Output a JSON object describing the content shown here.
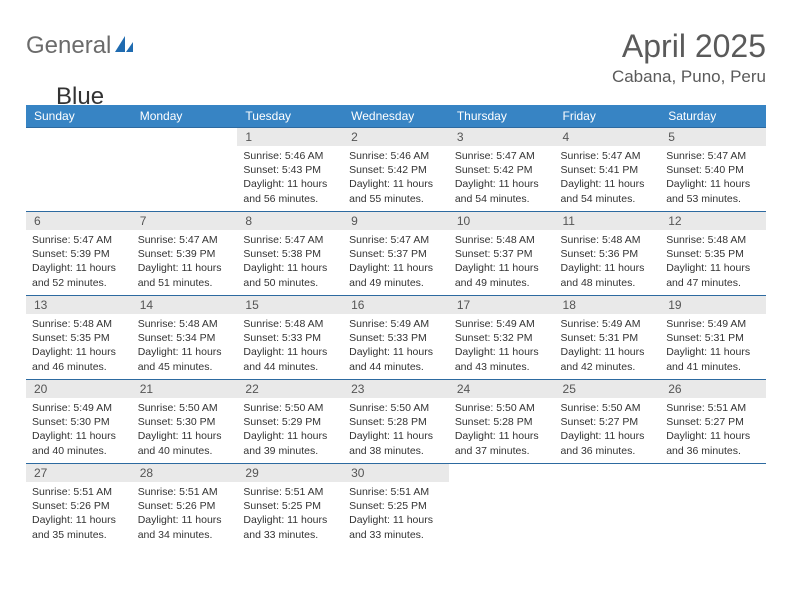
{
  "brand": {
    "word1": "General",
    "word2": "Blue"
  },
  "colors": {
    "brand_gray": "#6b6b6b",
    "brand_blue": "#3bb0e2",
    "header_bg": "#3784c4",
    "header_text": "#ffffff",
    "daynum_bg": "#e9e9e9",
    "rule": "#2d6aa0",
    "body_text": "#333333",
    "title_text": "#5a5a5a",
    "page_bg": "#ffffff"
  },
  "typography": {
    "title_fontsize": 32,
    "location_fontsize": 17,
    "dow_fontsize": 12,
    "daynum_fontsize": 12,
    "cell_fontsize": 10.5
  },
  "title": "April 2025",
  "location": "Cabana, Puno, Peru",
  "days_of_week": [
    "Sunday",
    "Monday",
    "Tuesday",
    "Wednesday",
    "Thursday",
    "Friday",
    "Saturday"
  ],
  "weeks": [
    [
      null,
      null,
      {
        "n": "1",
        "sr": "Sunrise: 5:46 AM",
        "ss": "Sunset: 5:43 PM",
        "dl1": "Daylight: 11 hours",
        "dl2": "and 56 minutes."
      },
      {
        "n": "2",
        "sr": "Sunrise: 5:46 AM",
        "ss": "Sunset: 5:42 PM",
        "dl1": "Daylight: 11 hours",
        "dl2": "and 55 minutes."
      },
      {
        "n": "3",
        "sr": "Sunrise: 5:47 AM",
        "ss": "Sunset: 5:42 PM",
        "dl1": "Daylight: 11 hours",
        "dl2": "and 54 minutes."
      },
      {
        "n": "4",
        "sr": "Sunrise: 5:47 AM",
        "ss": "Sunset: 5:41 PM",
        "dl1": "Daylight: 11 hours",
        "dl2": "and 54 minutes."
      },
      {
        "n": "5",
        "sr": "Sunrise: 5:47 AM",
        "ss": "Sunset: 5:40 PM",
        "dl1": "Daylight: 11 hours",
        "dl2": "and 53 minutes."
      }
    ],
    [
      {
        "n": "6",
        "sr": "Sunrise: 5:47 AM",
        "ss": "Sunset: 5:39 PM",
        "dl1": "Daylight: 11 hours",
        "dl2": "and 52 minutes."
      },
      {
        "n": "7",
        "sr": "Sunrise: 5:47 AM",
        "ss": "Sunset: 5:39 PM",
        "dl1": "Daylight: 11 hours",
        "dl2": "and 51 minutes."
      },
      {
        "n": "8",
        "sr": "Sunrise: 5:47 AM",
        "ss": "Sunset: 5:38 PM",
        "dl1": "Daylight: 11 hours",
        "dl2": "and 50 minutes."
      },
      {
        "n": "9",
        "sr": "Sunrise: 5:47 AM",
        "ss": "Sunset: 5:37 PM",
        "dl1": "Daylight: 11 hours",
        "dl2": "and 49 minutes."
      },
      {
        "n": "10",
        "sr": "Sunrise: 5:48 AM",
        "ss": "Sunset: 5:37 PM",
        "dl1": "Daylight: 11 hours",
        "dl2": "and 49 minutes."
      },
      {
        "n": "11",
        "sr": "Sunrise: 5:48 AM",
        "ss": "Sunset: 5:36 PM",
        "dl1": "Daylight: 11 hours",
        "dl2": "and 48 minutes."
      },
      {
        "n": "12",
        "sr": "Sunrise: 5:48 AM",
        "ss": "Sunset: 5:35 PM",
        "dl1": "Daylight: 11 hours",
        "dl2": "and 47 minutes."
      }
    ],
    [
      {
        "n": "13",
        "sr": "Sunrise: 5:48 AM",
        "ss": "Sunset: 5:35 PM",
        "dl1": "Daylight: 11 hours",
        "dl2": "and 46 minutes."
      },
      {
        "n": "14",
        "sr": "Sunrise: 5:48 AM",
        "ss": "Sunset: 5:34 PM",
        "dl1": "Daylight: 11 hours",
        "dl2": "and 45 minutes."
      },
      {
        "n": "15",
        "sr": "Sunrise: 5:48 AM",
        "ss": "Sunset: 5:33 PM",
        "dl1": "Daylight: 11 hours",
        "dl2": "and 44 minutes."
      },
      {
        "n": "16",
        "sr": "Sunrise: 5:49 AM",
        "ss": "Sunset: 5:33 PM",
        "dl1": "Daylight: 11 hours",
        "dl2": "and 44 minutes."
      },
      {
        "n": "17",
        "sr": "Sunrise: 5:49 AM",
        "ss": "Sunset: 5:32 PM",
        "dl1": "Daylight: 11 hours",
        "dl2": "and 43 minutes."
      },
      {
        "n": "18",
        "sr": "Sunrise: 5:49 AM",
        "ss": "Sunset: 5:31 PM",
        "dl1": "Daylight: 11 hours",
        "dl2": "and 42 minutes."
      },
      {
        "n": "19",
        "sr": "Sunrise: 5:49 AM",
        "ss": "Sunset: 5:31 PM",
        "dl1": "Daylight: 11 hours",
        "dl2": "and 41 minutes."
      }
    ],
    [
      {
        "n": "20",
        "sr": "Sunrise: 5:49 AM",
        "ss": "Sunset: 5:30 PM",
        "dl1": "Daylight: 11 hours",
        "dl2": "and 40 minutes."
      },
      {
        "n": "21",
        "sr": "Sunrise: 5:50 AM",
        "ss": "Sunset: 5:30 PM",
        "dl1": "Daylight: 11 hours",
        "dl2": "and 40 minutes."
      },
      {
        "n": "22",
        "sr": "Sunrise: 5:50 AM",
        "ss": "Sunset: 5:29 PM",
        "dl1": "Daylight: 11 hours",
        "dl2": "and 39 minutes."
      },
      {
        "n": "23",
        "sr": "Sunrise: 5:50 AM",
        "ss": "Sunset: 5:28 PM",
        "dl1": "Daylight: 11 hours",
        "dl2": "and 38 minutes."
      },
      {
        "n": "24",
        "sr": "Sunrise: 5:50 AM",
        "ss": "Sunset: 5:28 PM",
        "dl1": "Daylight: 11 hours",
        "dl2": "and 37 minutes."
      },
      {
        "n": "25",
        "sr": "Sunrise: 5:50 AM",
        "ss": "Sunset: 5:27 PM",
        "dl1": "Daylight: 11 hours",
        "dl2": "and 36 minutes."
      },
      {
        "n": "26",
        "sr": "Sunrise: 5:51 AM",
        "ss": "Sunset: 5:27 PM",
        "dl1": "Daylight: 11 hours",
        "dl2": "and 36 minutes."
      }
    ],
    [
      {
        "n": "27",
        "sr": "Sunrise: 5:51 AM",
        "ss": "Sunset: 5:26 PM",
        "dl1": "Daylight: 11 hours",
        "dl2": "and 35 minutes."
      },
      {
        "n": "28",
        "sr": "Sunrise: 5:51 AM",
        "ss": "Sunset: 5:26 PM",
        "dl1": "Daylight: 11 hours",
        "dl2": "and 34 minutes."
      },
      {
        "n": "29",
        "sr": "Sunrise: 5:51 AM",
        "ss": "Sunset: 5:25 PM",
        "dl1": "Daylight: 11 hours",
        "dl2": "and 33 minutes."
      },
      {
        "n": "30",
        "sr": "Sunrise: 5:51 AM",
        "ss": "Sunset: 5:25 PM",
        "dl1": "Daylight: 11 hours",
        "dl2": "and 33 minutes."
      },
      null,
      null,
      null
    ]
  ]
}
